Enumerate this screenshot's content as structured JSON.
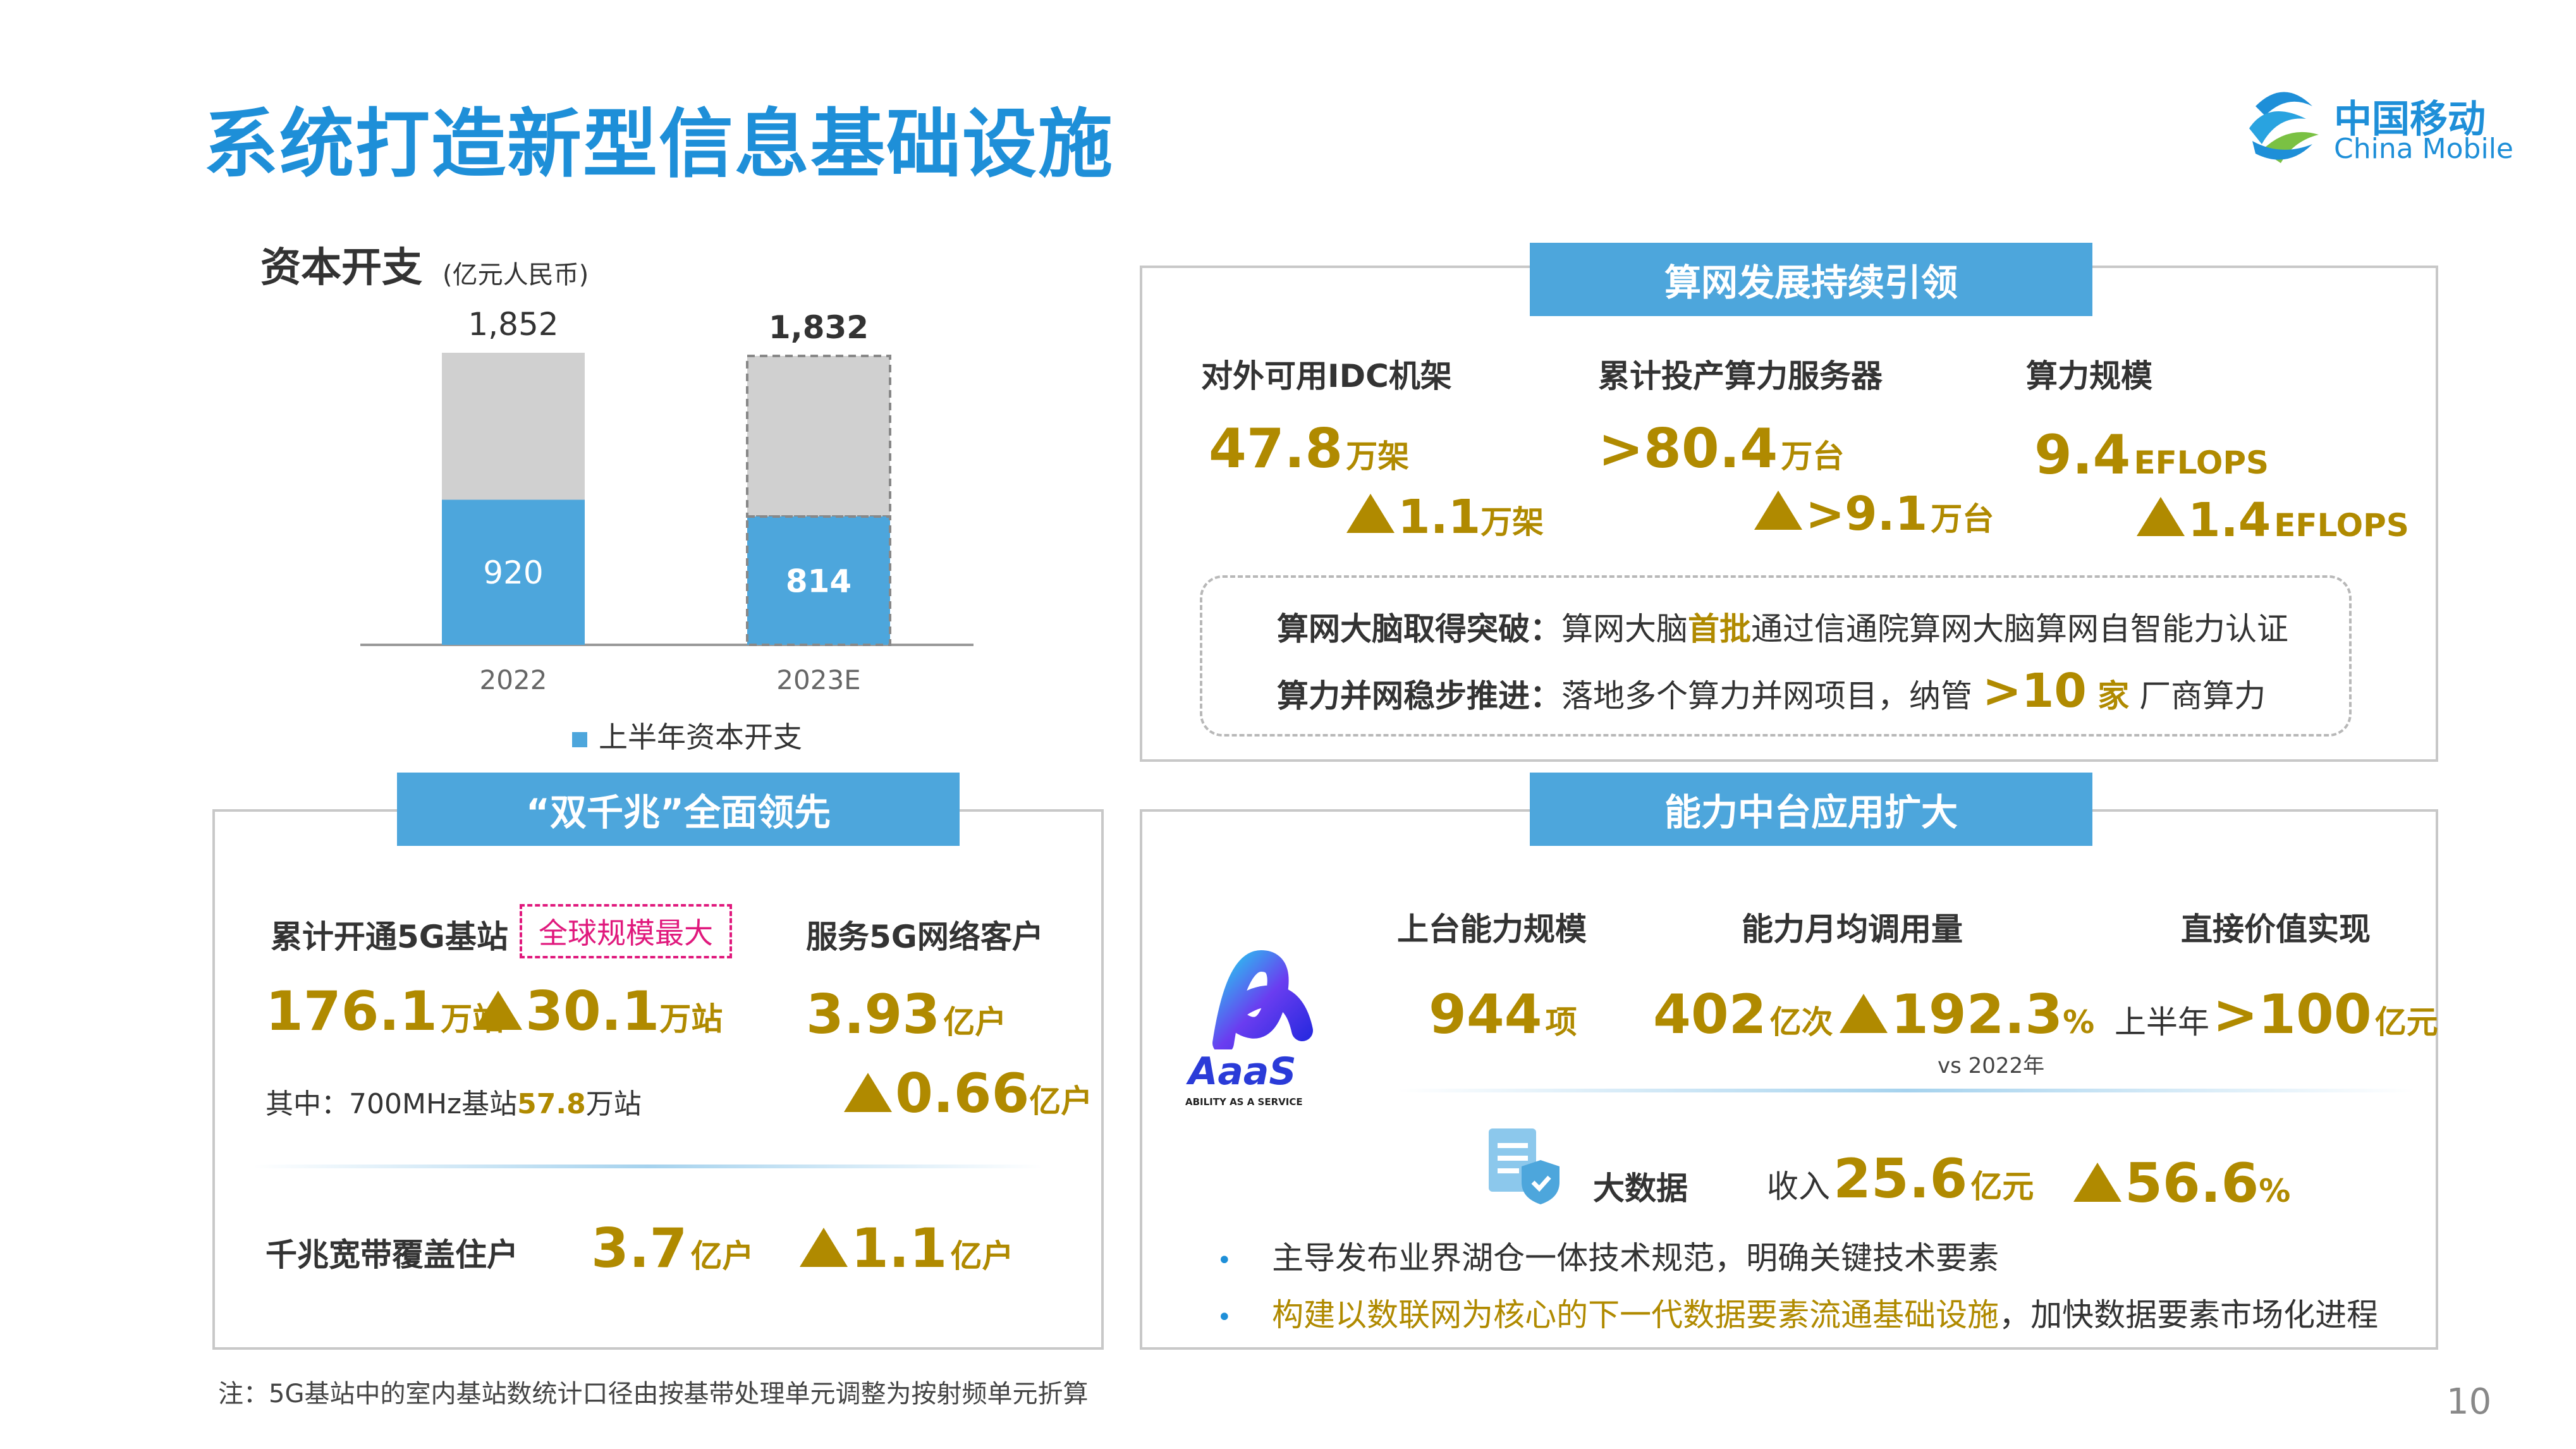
{
  "page": {
    "title": "系统打造新型信息基础设施",
    "page_number": "10",
    "footnote": "注：5G基站中的室内基站数统计口径由按基带处理单元调整为按射频单元折算"
  },
  "logo": {
    "cn": "中国移动",
    "en": "China Mobile"
  },
  "capex": {
    "title": "资本开支",
    "unit": "(亿元人民币)",
    "legend": "上半年资本开支",
    "chart_data": {
      "type": "bar",
      "categories": [
        "2022",
        "2023E"
      ],
      "series": [
        {
          "name": "上半年资本开支",
          "values": [
            920,
            814
          ]
        },
        {
          "values": [
            932,
            1018
          ]
        }
      ],
      "totals": [
        "1,852",
        "1,832"
      ],
      "labels": [
        "920",
        "814"
      ],
      "stacked": true
    }
  },
  "compute": {
    "header": "算网发展持续引领",
    "cols": [
      {
        "label": "对外可用IDC机架",
        "value": "47.8",
        "unit": "万架",
        "inc": "1.1",
        "inc_unit": "万架"
      },
      {
        "label": "累计投产算力服务器",
        "value": ">80.4",
        "unit": "万台",
        "inc": ">9.1",
        "inc_unit": "万台"
      },
      {
        "label": "算力规模",
        "value": "9.4",
        "unit": "EFLOPS",
        "inc": "1.4",
        "inc_unit": "EFLOPS"
      }
    ],
    "note1_label": "算网大脑取得突破：",
    "note1_a": "算网大脑",
    "note1_hl": "首批",
    "note1_b": "通过信通院算网大脑算网自智能力认证",
    "note2_label": "算力并网稳步推进：",
    "note2_a": "落地多个算力并网项目，纳管 ",
    "note2_num": ">10",
    "note2_unit": " 家",
    "note2_b": " 厂商算力"
  },
  "gigabit": {
    "header": "“双千兆”全面领先",
    "bs_label": "累计开通5G基站",
    "badge": "全球规模最大",
    "bs_value": "176.1",
    "bs_unit": "万站",
    "bs_inc": "30.1",
    "bs_inc_unit": "万站",
    "sub_a": "其中：700MHz基站",
    "sub_num": "57.8",
    "sub_b": "万站",
    "cust_label": "服务5G网络客户",
    "cust_value": "3.93",
    "cust_unit": "亿户",
    "cust_inc": "0.66",
    "cust_inc_unit": "亿户",
    "bb_label": "千兆宽带覆盖住户",
    "bb_value": "3.7",
    "bb_unit": "亿户",
    "bb_inc": "1.1",
    "bb_inc_unit": "亿户"
  },
  "capability": {
    "header": "能力中台应用扩大",
    "logo_text": "AaaS",
    "logo_sub": "ABILITY AS A SERVICE",
    "col1_label": "上台能力规模",
    "col1_value": "944",
    "col1_unit": "项",
    "col2_label": "能力月均调用量",
    "col2_value": "402",
    "col2_unit": "亿次",
    "col2_inc": "192.3",
    "col2_inc_unit": "%",
    "col2_vs": "vs 2022年",
    "col3_label": "直接价值实现",
    "col3_pre": "上半年",
    "col3_value": ">100",
    "col3_unit": "亿元",
    "bd_label": "大数据",
    "bd_pre": "收入",
    "bd_value": "25.6",
    "bd_unit": "亿元",
    "bd_inc": "56.6",
    "bd_inc_unit": "%",
    "bullet1": "主导发布业界湖仓一体技术规范，明确关键技术要素",
    "bullet2_hl": "构建以数联网为核心的下一代数据要素流通基础设施",
    "bullet2_b": "，加快数据要素市场化进程"
  }
}
